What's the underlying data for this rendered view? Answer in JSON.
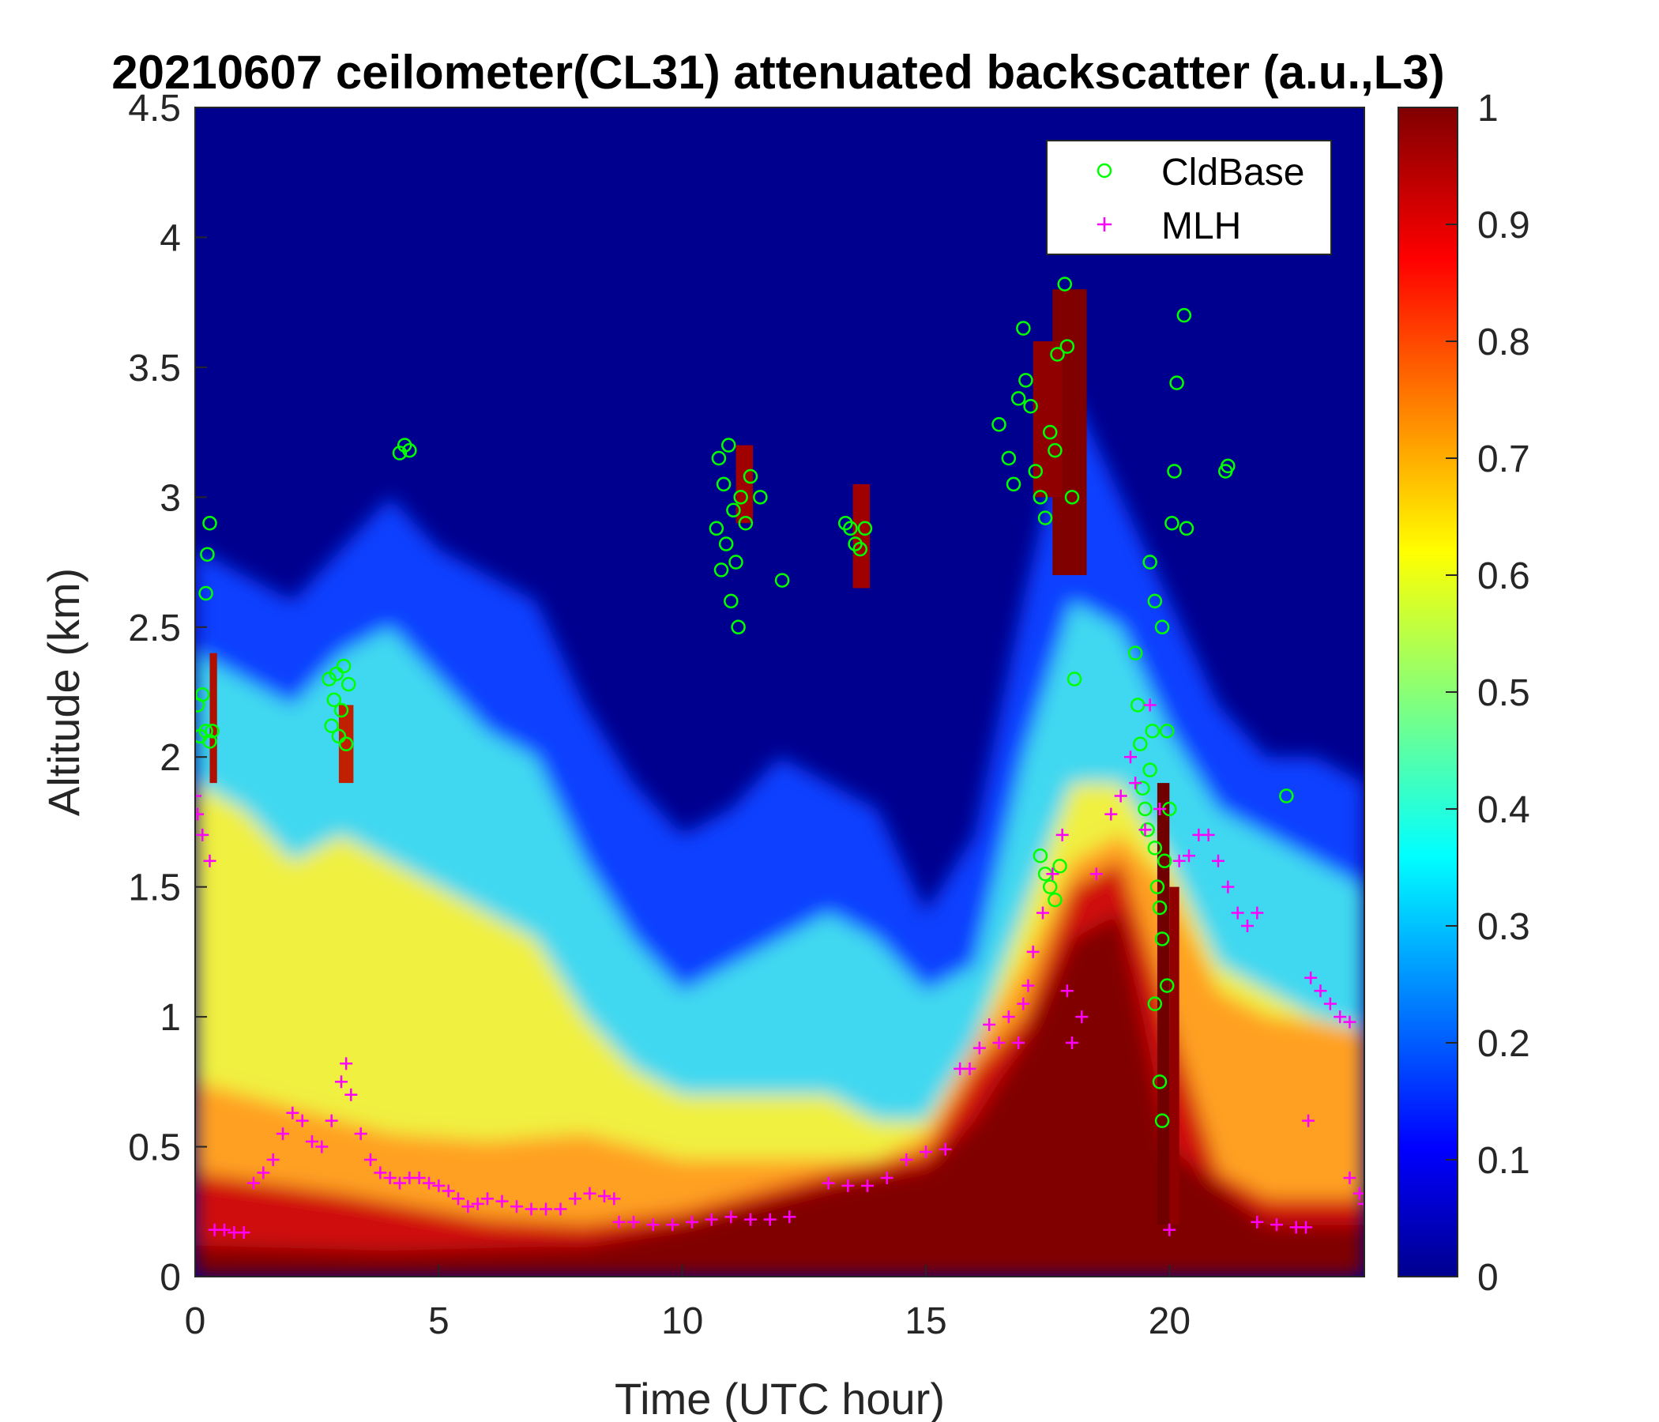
{
  "chart_data": {
    "type": "heatmap",
    "title": "20210607 ceilometer(CL31) attenuated backscatter (a.u.,L3)",
    "xlabel": "Time (UTC hour)",
    "ylabel": "Altitude (km)",
    "xlim": [
      0,
      24
    ],
    "ylim": [
      0,
      4.5
    ],
    "xticks": [
      "0",
      "5",
      "10",
      "15",
      "20"
    ],
    "yticks": [
      "0",
      "0.5",
      "1",
      "1.5",
      "2",
      "2.5",
      "3",
      "3.5",
      "4",
      "4.5"
    ],
    "colorbar": {
      "colormap": "jet",
      "range": [
        0,
        1
      ],
      "ticks": [
        "0",
        "0.1",
        "0.2",
        "0.3",
        "0.4",
        "0.5",
        "0.6",
        "0.7",
        "0.8",
        "0.9",
        "1"
      ]
    },
    "legend": {
      "position": "top-right",
      "entries": [
        {
          "label": "CldBase",
          "marker": "circle",
          "color": "#00ff00"
        },
        {
          "label": "MLH",
          "marker": "plus",
          "color": "#ff00ff"
        }
      ]
    },
    "cloud_base": [
      [
        0.05,
        2.2
      ],
      [
        0.1,
        2.08
      ],
      [
        0.15,
        2.24
      ],
      [
        0.22,
        2.1
      ],
      [
        0.3,
        2.06
      ],
      [
        0.3,
        2.9
      ],
      [
        0.25,
        2.78
      ],
      [
        0.22,
        2.63
      ],
      [
        0.35,
        2.1
      ],
      [
        2.75,
        2.3
      ],
      [
        2.8,
        2.12
      ],
      [
        2.85,
        2.22
      ],
      [
        2.9,
        2.32
      ],
      [
        2.95,
        2.08
      ],
      [
        3.0,
        2.18
      ],
      [
        3.05,
        2.35
      ],
      [
        3.1,
        2.05
      ],
      [
        3.15,
        2.28
      ],
      [
        4.2,
        3.17
      ],
      [
        4.3,
        3.2
      ],
      [
        4.4,
        3.18
      ],
      [
        10.7,
        2.88
      ],
      [
        10.75,
        3.15
      ],
      [
        10.8,
        2.72
      ],
      [
        10.85,
        3.05
      ],
      [
        10.9,
        2.82
      ],
      [
        10.95,
        3.2
      ],
      [
        11.0,
        2.6
      ],
      [
        11.05,
        2.95
      ],
      [
        11.1,
        2.75
      ],
      [
        11.15,
        2.5
      ],
      [
        11.2,
        3.0
      ],
      [
        11.3,
        2.9
      ],
      [
        11.4,
        3.08
      ],
      [
        11.6,
        3.0
      ],
      [
        12.05,
        2.68
      ],
      [
        13.35,
        2.9
      ],
      [
        13.45,
        2.88
      ],
      [
        13.55,
        2.82
      ],
      [
        13.65,
        2.8
      ],
      [
        13.75,
        2.88
      ],
      [
        16.5,
        3.28
      ],
      [
        16.7,
        3.15
      ],
      [
        16.8,
        3.05
      ],
      [
        16.9,
        3.38
      ],
      [
        17.0,
        3.65
      ],
      [
        17.05,
        3.45
      ],
      [
        17.15,
        3.35
      ],
      [
        17.25,
        3.1
      ],
      [
        17.35,
        3.0
      ],
      [
        17.45,
        2.92
      ],
      [
        17.55,
        3.25
      ],
      [
        17.65,
        3.18
      ],
      [
        17.7,
        3.55
      ],
      [
        17.85,
        3.82
      ],
      [
        17.9,
        3.58
      ],
      [
        18.0,
        3.0
      ],
      [
        18.05,
        2.3
      ],
      [
        17.35,
        1.62
      ],
      [
        17.45,
        1.55
      ],
      [
        17.55,
        1.5
      ],
      [
        17.65,
        1.45
      ],
      [
        17.75,
        1.58
      ],
      [
        19.3,
        2.4
      ],
      [
        19.35,
        2.2
      ],
      [
        19.4,
        2.05
      ],
      [
        19.45,
        1.88
      ],
      [
        19.5,
        1.8
      ],
      [
        19.55,
        1.72
      ],
      [
        19.6,
        1.95
      ],
      [
        19.65,
        2.1
      ],
      [
        19.7,
        1.65
      ],
      [
        19.75,
        1.5
      ],
      [
        19.8,
        1.42
      ],
      [
        19.85,
        1.3
      ],
      [
        19.9,
        1.6
      ],
      [
        19.95,
        2.1
      ],
      [
        20.0,
        1.8
      ],
      [
        19.6,
        2.75
      ],
      [
        19.7,
        2.6
      ],
      [
        19.85,
        2.5
      ],
      [
        20.05,
        2.9
      ],
      [
        20.1,
        3.1
      ],
      [
        20.15,
        3.44
      ],
      [
        20.3,
        3.7
      ],
      [
        20.35,
        2.88
      ],
      [
        19.7,
        1.05
      ],
      [
        19.8,
        0.75
      ],
      [
        19.85,
        0.6
      ],
      [
        19.95,
        1.12
      ],
      [
        21.15,
        3.1
      ],
      [
        21.2,
        3.12
      ],
      [
        22.4,
        1.85
      ]
    ],
    "mlh": [
      [
        0.0,
        1.85
      ],
      [
        0.05,
        1.78
      ],
      [
        0.15,
        1.7
      ],
      [
        0.3,
        1.6
      ],
      [
        0.4,
        0.18
      ],
      [
        0.6,
        0.18
      ],
      [
        0.8,
        0.17
      ],
      [
        1.0,
        0.17
      ],
      [
        1.2,
        0.36
      ],
      [
        1.4,
        0.4
      ],
      [
        1.6,
        0.45
      ],
      [
        1.8,
        0.55
      ],
      [
        2.0,
        0.63
      ],
      [
        2.2,
        0.6
      ],
      [
        2.4,
        0.52
      ],
      [
        2.6,
        0.5
      ],
      [
        2.8,
        0.6
      ],
      [
        3.0,
        0.75
      ],
      [
        3.1,
        0.82
      ],
      [
        3.2,
        0.7
      ],
      [
        3.4,
        0.55
      ],
      [
        3.6,
        0.45
      ],
      [
        3.8,
        0.4
      ],
      [
        4.0,
        0.38
      ],
      [
        4.2,
        0.36
      ],
      [
        4.4,
        0.38
      ],
      [
        4.6,
        0.38
      ],
      [
        4.8,
        0.36
      ],
      [
        5.0,
        0.35
      ],
      [
        5.2,
        0.33
      ],
      [
        5.4,
        0.3
      ],
      [
        5.6,
        0.27
      ],
      [
        5.8,
        0.28
      ],
      [
        6.0,
        0.3
      ],
      [
        6.3,
        0.29
      ],
      [
        6.6,
        0.27
      ],
      [
        6.9,
        0.26
      ],
      [
        7.2,
        0.26
      ],
      [
        7.5,
        0.26
      ],
      [
        7.8,
        0.3
      ],
      [
        8.1,
        0.32
      ],
      [
        8.4,
        0.31
      ],
      [
        8.6,
        0.3
      ],
      [
        8.7,
        0.21
      ],
      [
        9.0,
        0.21
      ],
      [
        9.4,
        0.2
      ],
      [
        9.8,
        0.2
      ],
      [
        10.2,
        0.21
      ],
      [
        10.6,
        0.22
      ],
      [
        11.0,
        0.23
      ],
      [
        11.4,
        0.22
      ],
      [
        11.8,
        0.22
      ],
      [
        12.2,
        0.23
      ],
      [
        13.0,
        0.36
      ],
      [
        13.4,
        0.35
      ],
      [
        13.8,
        0.35
      ],
      [
        14.2,
        0.38
      ],
      [
        14.6,
        0.45
      ],
      [
        15.0,
        0.48
      ],
      [
        15.4,
        0.49
      ],
      [
        15.7,
        0.8
      ],
      [
        15.9,
        0.8
      ],
      [
        16.1,
        0.88
      ],
      [
        16.3,
        0.97
      ],
      [
        16.5,
        0.9
      ],
      [
        16.7,
        1.0
      ],
      [
        16.9,
        0.9
      ],
      [
        17.0,
        1.05
      ],
      [
        17.1,
        1.12
      ],
      [
        17.2,
        1.25
      ],
      [
        17.4,
        1.4
      ],
      [
        17.6,
        1.55
      ],
      [
        17.8,
        1.7
      ],
      [
        17.9,
        1.1
      ],
      [
        18.0,
        0.9
      ],
      [
        18.2,
        1.0
      ],
      [
        18.5,
        1.55
      ],
      [
        18.8,
        1.78
      ],
      [
        19.0,
        1.85
      ],
      [
        19.2,
        2.0
      ],
      [
        19.3,
        1.9
      ],
      [
        19.5,
        1.72
      ],
      [
        19.6,
        2.2
      ],
      [
        19.8,
        1.8
      ],
      [
        20.0,
        0.18
      ],
      [
        20.2,
        1.6
      ],
      [
        20.4,
        1.62
      ],
      [
        20.6,
        1.7
      ],
      [
        20.8,
        1.7
      ],
      [
        21.0,
        1.6
      ],
      [
        21.2,
        1.5
      ],
      [
        21.4,
        1.4
      ],
      [
        21.6,
        1.35
      ],
      [
        21.8,
        1.4
      ],
      [
        21.8,
        0.21
      ],
      [
        22.2,
        0.2
      ],
      [
        22.6,
        0.19
      ],
      [
        22.8,
        0.19
      ],
      [
        22.85,
        0.6
      ],
      [
        22.9,
        1.15
      ],
      [
        23.1,
        1.1
      ],
      [
        23.3,
        1.05
      ],
      [
        23.5,
        1.0
      ],
      [
        23.7,
        0.98
      ],
      [
        23.7,
        0.38
      ],
      [
        23.9,
        0.32
      ],
      [
        24.0,
        0.28
      ]
    ]
  }
}
